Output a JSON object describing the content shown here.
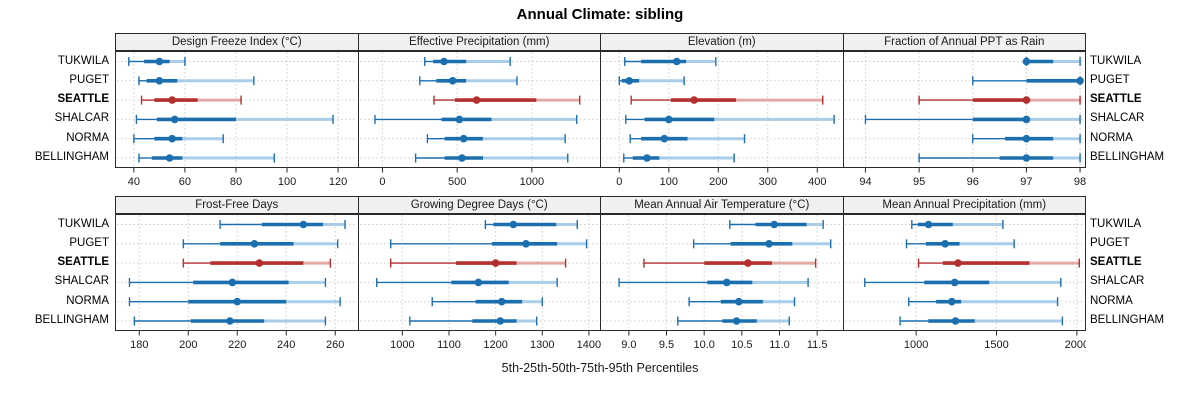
{
  "title": "Annual Climate: sibling",
  "caption": "5th-25th-50th-75th-95th Percentiles",
  "stations": [
    "TUKWILA",
    "PUGET",
    "SEATTLE",
    "SHALCAR",
    "NORMA",
    "BELLINGHAM"
  ],
  "highlight_station": "SEATTLE",
  "colors": {
    "blue_dark": "#1c6fae",
    "blue_pale": "#a9cde8",
    "red_dark": "#b4302e",
    "red_pale": "#e2a9a7",
    "grid": "#cdcdcd",
    "panel_border": "#2a2a2a",
    "strip_bg": "#f0f0f0",
    "tick_text": "#1a1a1a"
  },
  "chart_data": {
    "type": "dotplot",
    "note": "5th-25th-50th-75th-95th percentile whisker plots per station, 2x4 panel lattice",
    "percentiles": [
      "5th",
      "25th",
      "50th",
      "75th",
      "95th"
    ],
    "station_order_top_to_bottom": [
      "TUKWILA",
      "PUGET",
      "SEATTLE",
      "SHALCAR",
      "NORMA",
      "BELLINGHAM"
    ],
    "panels": [
      {
        "title": "Design Freeze Index (°C)",
        "xlim": [
          33,
          128
        ],
        "ticks": [
          40,
          60,
          80,
          100,
          120
        ],
        "tick_labels": [
          "40",
          "60",
          "80",
          "100",
          "120"
        ],
        "series": [
          [
            38,
            44,
            50,
            54,
            60
          ],
          [
            42,
            45,
            50,
            57,
            87
          ],
          [
            43,
            48,
            55,
            65,
            82
          ],
          [
            41,
            49,
            56,
            80,
            118
          ],
          [
            40,
            48,
            55,
            59,
            75
          ],
          [
            42,
            47,
            54,
            59,
            95
          ]
        ]
      },
      {
        "title": "Effective Precipitation (mm)",
        "xlim": [
          -157,
          1466
        ],
        "ticks": [
          0,
          500,
          1000
        ],
        "tick_labels": [
          "0",
          "500",
          "1000"
        ],
        "series": [
          [
            283,
            339,
            412,
            561,
            855
          ],
          [
            250,
            360,
            470,
            560,
            900
          ],
          [
            345,
            485,
            630,
            1030,
            1320
          ],
          [
            -50,
            395,
            515,
            730,
            1300
          ],
          [
            301,
            416,
            543,
            672,
            1223
          ],
          [
            222,
            416,
            532,
            673,
            1240
          ]
        ]
      },
      {
        "title": "Elevation (m)",
        "xlim": [
          -37,
          453
        ],
        "ticks": [
          0,
          100,
          200,
          300,
          400
        ],
        "tick_labels": [
          "0",
          "100",
          "200",
          "300",
          "400"
        ],
        "series": [
          [
            11,
            44,
            116,
            135,
            195
          ],
          [
            0,
            5,
            20,
            40,
            131
          ],
          [
            24,
            104,
            151,
            236,
            411
          ],
          [
            13,
            51,
            100,
            192,
            434
          ],
          [
            22,
            44,
            91,
            138,
            253
          ],
          [
            9,
            27,
            56,
            81,
            232
          ]
        ]
      },
      {
        "title": "Fraction of Annual PPT as Rain",
        "xlim": [
          93.6,
          98.12
        ],
        "ticks": [
          94,
          95,
          96,
          97,
          98
        ],
        "tick_labels": [
          "94",
          "95",
          "96",
          "97",
          "98"
        ],
        "series": [
          [
            97,
            97,
            97,
            97.5,
            98
          ],
          [
            96,
            97,
            98,
            98,
            98
          ],
          [
            95,
            96,
            97,
            97,
            98
          ],
          [
            94,
            96,
            97,
            97,
            98
          ],
          [
            96,
            96.6,
            97,
            97.5,
            98
          ],
          [
            95,
            96.5,
            97,
            97.5,
            98
          ]
        ]
      },
      {
        "title": "Frost-Free Days",
        "xlim": [
          170.5,
          269.5
        ],
        "ticks": [
          180,
          200,
          220,
          240,
          260
        ],
        "tick_labels": [
          "180",
          "200",
          "220",
          "240",
          "260"
        ],
        "series": [
          [
            213,
            230,
            247,
            255,
            264
          ],
          [
            198,
            213,
            227,
            243,
            261
          ],
          [
            198,
            209,
            229,
            247,
            258
          ],
          [
            176,
            202,
            218,
            241,
            256
          ],
          [
            176,
            200,
            220,
            240,
            262
          ],
          [
            178,
            201,
            217,
            231,
            256
          ]
        ]
      },
      {
        "title": "Growing Degree Days (°C)",
        "xlim": [
          907,
          1427
        ],
        "ticks": [
          1000,
          1100,
          1200,
          1300,
          1400
        ],
        "tick_labels": [
          "1000",
          "1100",
          "1200",
          "1300",
          "1400"
        ],
        "series": [
          [
            1178,
            1195,
            1238,
            1330,
            1375
          ],
          [
            975,
            1192,
            1265,
            1332,
            1395
          ],
          [
            975,
            1115,
            1200,
            1245,
            1350
          ],
          [
            945,
            1105,
            1163,
            1228,
            1332
          ],
          [
            1064,
            1157,
            1213,
            1257,
            1300
          ],
          [
            1016,
            1150,
            1210,
            1245,
            1288
          ]
        ]
      },
      {
        "title": "Mean Annual Air Temperature (°C)",
        "xlim": [
          8.63,
          11.85
        ],
        "ticks": [
          9.0,
          9.5,
          10.0,
          10.5,
          11.0,
          11.5
        ],
        "tick_labels": [
          "9.0",
          "9.5",
          "10.0",
          "10.5",
          "11.0",
          "11.5"
        ],
        "series": [
          [
            10.34,
            10.68,
            10.93,
            11.36,
            11.58
          ],
          [
            9.86,
            10.35,
            10.86,
            11.17,
            11.68
          ],
          [
            9.2,
            10.0,
            10.58,
            10.9,
            11.48
          ],
          [
            8.87,
            10.04,
            10.3,
            10.64,
            11.38
          ],
          [
            9.8,
            10.22,
            10.46,
            10.78,
            11.2
          ],
          [
            9.65,
            10.24,
            10.43,
            10.7,
            11.13
          ]
        ]
      },
      {
        "title": "Mean Annual Precipitation (mm)",
        "xlim": [
          551,
          2060
        ],
        "ticks": [
          1000,
          1500,
          2000
        ],
        "tick_labels": [
          "1000",
          "1500",
          "2000"
        ],
        "series": [
          [
            973,
            1010,
            1077,
            1228,
            1540
          ],
          [
            940,
            1060,
            1180,
            1270,
            1610
          ],
          [
            1015,
            1165,
            1260,
            1705,
            2015
          ],
          [
            680,
            1050,
            1240,
            1455,
            1900
          ],
          [
            954,
            1124,
            1222,
            1280,
            1880
          ],
          [
            900,
            1075,
            1245,
            1365,
            1910
          ]
        ]
      }
    ]
  }
}
